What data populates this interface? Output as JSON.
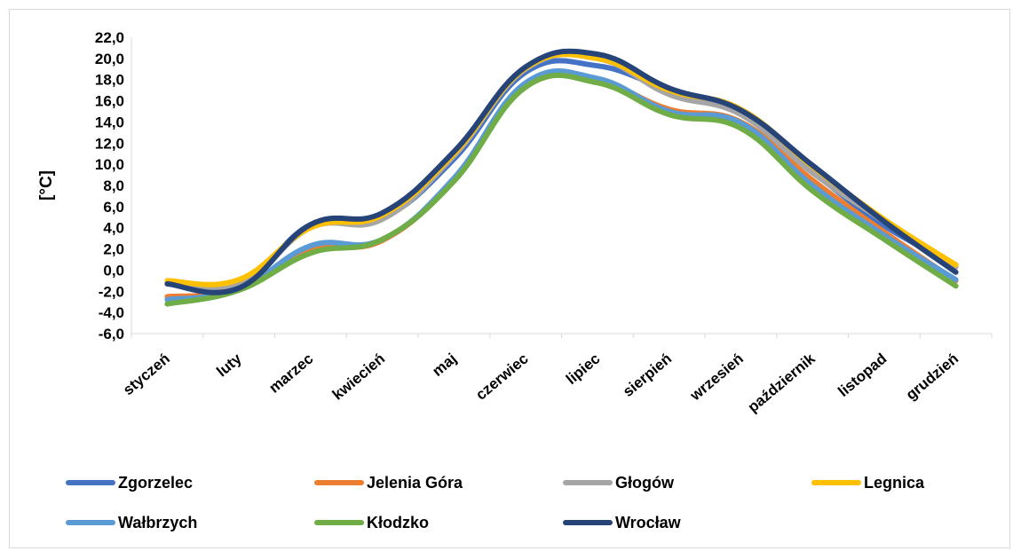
{
  "chart_data": {
    "type": "line",
    "title": "",
    "xlabel": "",
    "ylabel": "[°C]",
    "ylim": [
      -6,
      22
    ],
    "ytick_step": 2,
    "ytick_labels": [
      "-6,0",
      "-4,0",
      "-2,0",
      "0,0",
      "2,0",
      "4,0",
      "6,0",
      "8,0",
      "10,0",
      "12,0",
      "14,0",
      "16,0",
      "18,0",
      "20,0",
      "22,0"
    ],
    "grid": false,
    "smooth": true,
    "legend_position": "bottom",
    "categories": [
      "styczeń",
      "luty",
      "marzec",
      "kwiecień",
      "maj",
      "czerwiec",
      "lipiec",
      "sierpień",
      "wrzesień",
      "październik",
      "listopad",
      "grudzień"
    ],
    "series": [
      {
        "name": "Zgorzelec",
        "color": "#4472C4",
        "values": [
          -1.3,
          -1.6,
          4.3,
          4.9,
          10.5,
          18.7,
          19.3,
          17.0,
          14.8,
          9.3,
          4.2,
          0.5
        ]
      },
      {
        "name": "Jelenia Góra",
        "color": "#ED7D31",
        "values": [
          -2.5,
          -1.8,
          1.9,
          2.8,
          8.6,
          17.6,
          17.9,
          15.2,
          14.0,
          8.5,
          3.6,
          -1.0
        ]
      },
      {
        "name": "Głogów",
        "color": "#A5A5A5",
        "values": [
          -1.3,
          -1.4,
          4.0,
          4.8,
          10.8,
          19.0,
          20.0,
          16.6,
          14.7,
          9.2,
          4.6,
          0.3
        ]
      },
      {
        "name": "Legnica",
        "color": "#FFC000",
        "values": [
          -1.0,
          -0.9,
          4.0,
          5.2,
          11.0,
          19.1,
          20.0,
          17.0,
          15.2,
          9.8,
          4.8,
          0.5
        ]
      },
      {
        "name": "Wałbrzych",
        "color": "#5B9BD5",
        "values": [
          -2.8,
          -1.8,
          2.3,
          2.9,
          8.7,
          17.7,
          18.1,
          15.0,
          13.9,
          8.0,
          3.3,
          -0.9
        ]
      },
      {
        "name": "Kłodzko",
        "color": "#70AD47",
        "values": [
          -3.2,
          -1.9,
          1.6,
          2.9,
          8.4,
          17.3,
          17.7,
          14.7,
          13.4,
          7.5,
          2.9,
          -1.5
        ]
      },
      {
        "name": "Wrocław",
        "color": "#264478",
        "values": [
          -1.3,
          -1.7,
          4.3,
          5.4,
          11.2,
          19.2,
          20.4,
          17.2,
          15.1,
          9.9,
          4.6,
          -0.2
        ]
      }
    ]
  }
}
